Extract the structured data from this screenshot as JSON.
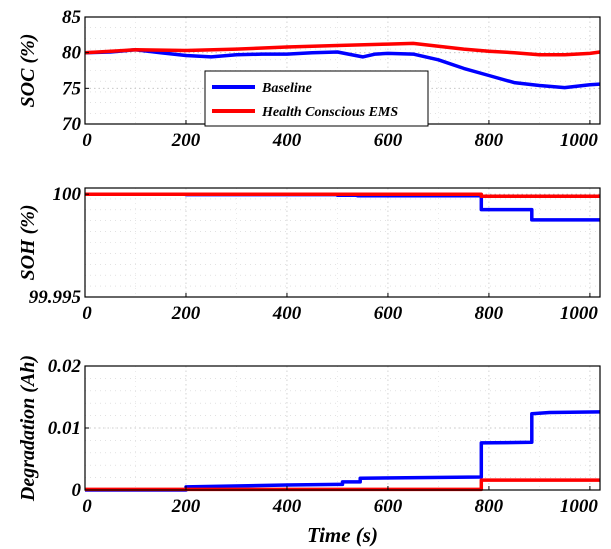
{
  "chart_data": [
    {
      "type": "line",
      "ylabel": "SOC  (%)",
      "xlabel": "",
      "xlim": [
        0,
        1020
      ],
      "ylim": [
        70,
        85
      ],
      "xticks": [
        0,
        200,
        400,
        600,
        800,
        1000
      ],
      "yticks": [
        70,
        75,
        80,
        85
      ],
      "ytick_labels": [
        "70",
        "75",
        "80",
        "85"
      ],
      "grid": true,
      "legend": "center-left",
      "series": [
        {
          "name": "Baseline",
          "color": "#0000ff",
          "x": [
            0,
            50,
            100,
            150,
            200,
            250,
            300,
            350,
            400,
            450,
            500,
            550,
            575,
            600,
            650,
            700,
            750,
            800,
            850,
            900,
            950,
            1000,
            1020
          ],
          "y": [
            80.0,
            80.1,
            80.4,
            80.0,
            79.6,
            79.4,
            79.7,
            79.8,
            79.8,
            80.0,
            80.1,
            79.4,
            79.8,
            79.9,
            79.8,
            79.0,
            77.8,
            76.8,
            75.8,
            75.4,
            75.1,
            75.5,
            75.6
          ]
        },
        {
          "name": "Health Conscious EMS",
          "color": "#ff0000",
          "x": [
            0,
            100,
            200,
            300,
            400,
            500,
            600,
            650,
            700,
            750,
            800,
            850,
            900,
            950,
            1000,
            1020
          ],
          "y": [
            80.0,
            80.4,
            80.3,
            80.5,
            80.8,
            81.0,
            81.2,
            81.3,
            80.9,
            80.5,
            80.2,
            80.0,
            79.7,
            79.7,
            79.9,
            80.1
          ]
        }
      ]
    },
    {
      "type": "line",
      "ylabel": "SOH (%)",
      "xlabel": "",
      "xlim": [
        0,
        1020
      ],
      "ylim": [
        99.995,
        100.0003
      ],
      "xticks": [
        0,
        200,
        400,
        600,
        800,
        1000
      ],
      "yticks": [
        99.995,
        100
      ],
      "ytick_labels": [
        "99.995",
        "100"
      ],
      "grid": true,
      "series": [
        {
          "name": "Baseline",
          "color": "#0000ff",
          "x": [
            0,
            200,
            200,
            500,
            500,
            540,
            540,
            785,
            785,
            885,
            885,
            1020
          ],
          "y": [
            100.0,
            100.0,
            99.99998,
            99.99998,
            99.99995,
            99.99995,
            99.99992,
            99.99992,
            99.99925,
            99.99925,
            99.99875,
            99.99875
          ]
        },
        {
          "name": "Health Conscious EMS",
          "color": "#ff0000",
          "x": [
            0,
            785,
            785,
            1020
          ],
          "y": [
            100.0,
            100.0,
            99.9999,
            99.9999
          ]
        }
      ]
    },
    {
      "type": "line",
      "ylabel": "Degradation  (Ah)",
      "xlabel": "Time (s)",
      "xlim": [
        0,
        1020
      ],
      "ylim": [
        0,
        0.02
      ],
      "xticks": [
        0,
        200,
        400,
        600,
        800,
        1000
      ],
      "yticks": [
        0,
        0.01,
        0.02
      ],
      "ytick_labels": [
        "0",
        "0.01",
        "0.02"
      ],
      "grid": true,
      "series": [
        {
          "name": "Baseline",
          "color": "#0000ff",
          "x": [
            0,
            200,
            200,
            400,
            500,
            510,
            510,
            545,
            545,
            785,
            785,
            885,
            885,
            920,
            1020
          ],
          "y": [
            0,
            0,
            0.0005,
            0.0008,
            0.0009,
            0.0009,
            0.0013,
            0.0013,
            0.0019,
            0.0021,
            0.0076,
            0.0077,
            0.0123,
            0.0125,
            0.0126
          ]
        },
        {
          "name": "Health Conscious EMS",
          "color": "#ff0000",
          "x": [
            0,
            785,
            785,
            1020
          ],
          "y": [
            0.0001,
            0.0001,
            0.0016,
            0.0016
          ]
        }
      ]
    }
  ]
}
